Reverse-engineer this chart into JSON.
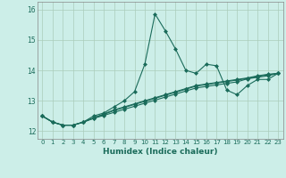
{
  "xlabel": "Humidex (Indice chaleur)",
  "bg_color": "#cceee8",
  "grid_color": "#aaccbb",
  "line_color": "#1a6b5a",
  "xlim": [
    -0.5,
    23.5
  ],
  "ylim": [
    11.75,
    16.25
  ],
  "yticks": [
    12,
    13,
    14,
    15,
    16
  ],
  "xticks": [
    0,
    1,
    2,
    3,
    4,
    5,
    6,
    7,
    8,
    9,
    10,
    11,
    12,
    13,
    14,
    15,
    16,
    17,
    18,
    19,
    20,
    21,
    22,
    23
  ],
  "series": [
    [
      12.5,
      12.3,
      12.2,
      12.2,
      12.3,
      12.5,
      12.6,
      12.8,
      13.0,
      13.3,
      14.2,
      15.85,
      15.3,
      14.7,
      14.0,
      13.9,
      14.2,
      14.15,
      13.35,
      13.2,
      13.5,
      13.7,
      13.7,
      13.9
    ],
    [
      12.5,
      12.3,
      12.2,
      12.2,
      12.3,
      12.42,
      12.52,
      12.62,
      12.72,
      12.82,
      12.92,
      13.02,
      13.12,
      13.22,
      13.32,
      13.42,
      13.47,
      13.52,
      13.57,
      13.62,
      13.72,
      13.77,
      13.82,
      13.9
    ],
    [
      12.5,
      12.3,
      12.2,
      12.2,
      12.3,
      12.43,
      12.55,
      12.68,
      12.78,
      12.88,
      12.98,
      13.08,
      13.18,
      13.28,
      13.38,
      13.48,
      13.53,
      13.58,
      13.63,
      13.68,
      13.73,
      13.8,
      13.85,
      13.9
    ],
    [
      12.5,
      12.3,
      12.2,
      12.2,
      12.3,
      12.44,
      12.57,
      12.7,
      12.8,
      12.9,
      13.0,
      13.1,
      13.2,
      13.3,
      13.4,
      13.5,
      13.55,
      13.6,
      13.65,
      13.7,
      13.75,
      13.82,
      13.87,
      13.9
    ]
  ]
}
